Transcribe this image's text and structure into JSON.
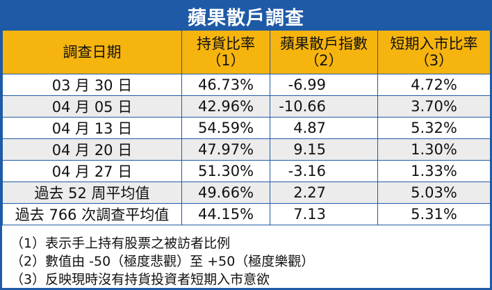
{
  "title": "蘋果散戶調查",
  "headers": {
    "date": "調查日期",
    "holding_ratio": "持貨比率",
    "holding_ratio_num": "（1）",
    "retail_index": "蘋果散戶指數",
    "retail_index_num": "（2）",
    "entry_ratio": "短期入市比率",
    "entry_ratio_num": "（3）"
  },
  "rows": [
    {
      "date": "03 月 30 日",
      "holding": "46.73%",
      "index": "-6.99",
      "entry": "4.72%"
    },
    {
      "date": "04 月 05 日",
      "holding": "42.96%",
      "index": "-10.66",
      "entry": "3.70%"
    },
    {
      "date": "04 月 13 日",
      "holding": "54.59%",
      "index": "4.87",
      "entry": "5.32%"
    },
    {
      "date": "04 月 20 日",
      "holding": "47.97%",
      "index": "9.15",
      "entry": "1.30%"
    },
    {
      "date": "04 月 27 日",
      "holding": "51.30%",
      "index": "-3.16",
      "entry": "1.33%"
    },
    {
      "date": "過去 52 周平均值",
      "holding": "49.66%",
      "index": "2.27",
      "entry": "5.03%"
    },
    {
      "date": "過去 766 次調查平均值",
      "holding": "44.15%",
      "index": "7.13",
      "entry": "5.31%"
    }
  ],
  "notes": [
    "（1）表示手上持有股票之被訪者比例",
    "（2）數值由 -50（極度悲觀）至 +50（極度樂觀）",
    "（3）反映現時沒有持貨投資者短期入市意欲"
  ],
  "colors": {
    "frame_blue": "#1f5aa6",
    "header_yellow": "#f6b40e",
    "stripe_gray": "#ececec"
  }
}
